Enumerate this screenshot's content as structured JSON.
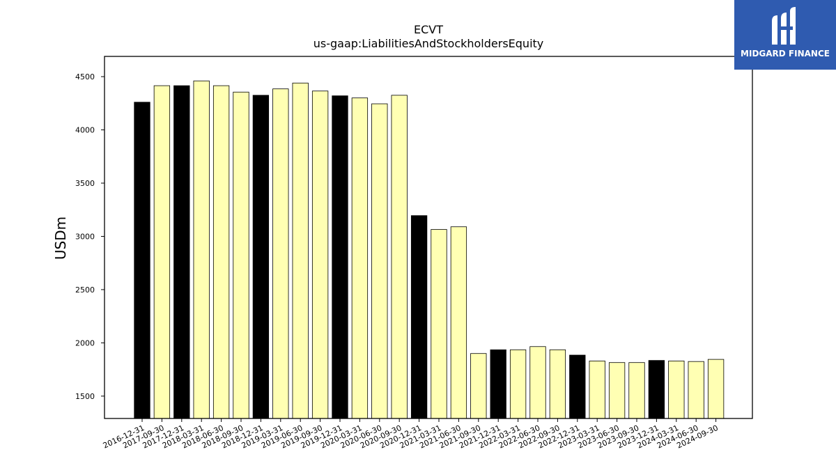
{
  "chart_data": {
    "type": "bar",
    "title": "ECVT",
    "subtitle": "us-gaap:LiabilitiesAndStockholdersEquity",
    "ylabel": "USDm",
    "xlabel": "",
    "ylim": [
      1290,
      4690
    ],
    "yticks": [
      1500,
      2000,
      2500,
      3000,
      3500,
      4000,
      4500
    ],
    "grid": false,
    "categories": [
      "2016-12-31",
      "2017-09-30",
      "2017-12-31",
      "2018-03-31",
      "2018-06-30",
      "2018-09-30",
      "2018-12-31",
      "2019-03-31",
      "2019-06-30",
      "2019-09-30",
      "2019-12-31",
      "2020-03-31",
      "2020-06-30",
      "2020-09-30",
      "2020-12-31",
      "2021-03-31",
      "2021-06-30",
      "2021-09-30",
      "2021-12-31",
      "2022-03-31",
      "2022-06-30",
      "2022-09-30",
      "2022-12-31",
      "2023-03-31",
      "2023-06-30",
      "2023-09-30",
      "2023-12-31",
      "2024-03-31",
      "2024-06-30",
      "2024-09-30"
    ],
    "values": [
      4260,
      4415,
      4415,
      4460,
      4415,
      4355,
      4325,
      4385,
      4440,
      4365,
      4320,
      4300,
      4245,
      4325,
      3195,
      3065,
      3090,
      1900,
      1935,
      1935,
      1965,
      1935,
      1885,
      1830,
      1815,
      1815,
      1835,
      1830,
      1825,
      1845
    ],
    "fiscal_year_end": [
      true,
      false,
      true,
      false,
      false,
      false,
      true,
      false,
      false,
      false,
      true,
      false,
      false,
      false,
      true,
      false,
      false,
      false,
      true,
      false,
      false,
      false,
      true,
      false,
      false,
      false,
      true,
      false,
      false,
      false
    ],
    "colors": {
      "annual": "#000000",
      "quarterly": "#ffffb3",
      "edge": "#000000"
    }
  },
  "logo": {
    "text": "MIDGARD FINANCE",
    "color": "#2f5bb0"
  }
}
